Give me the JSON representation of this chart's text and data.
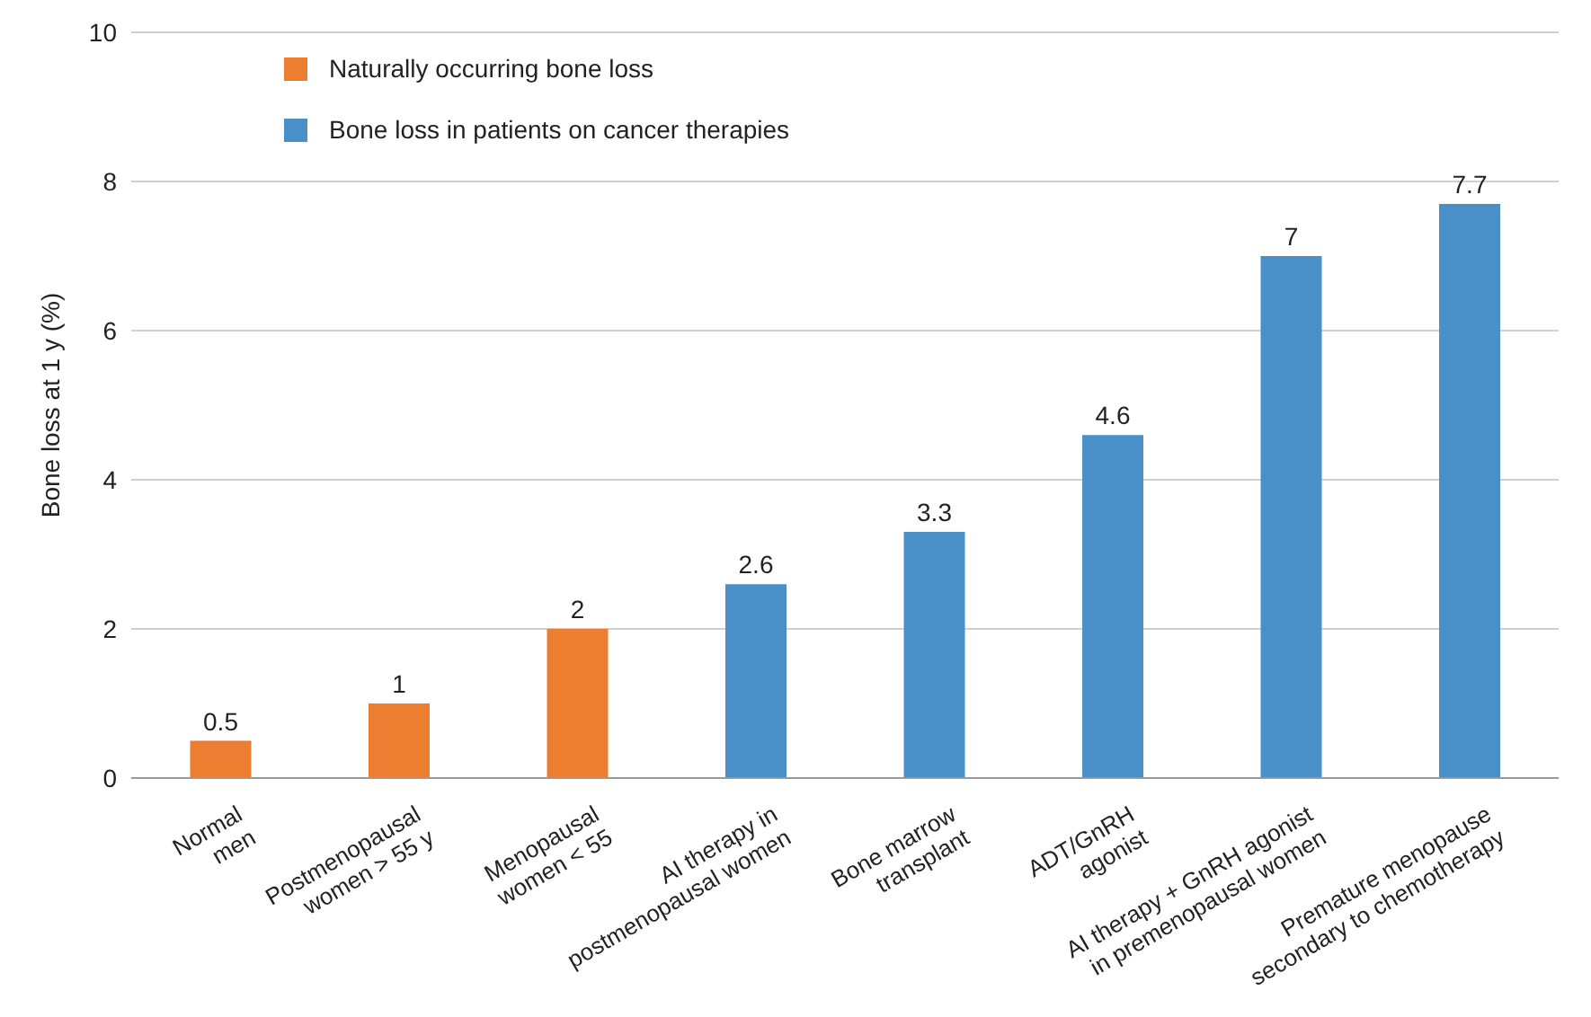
{
  "chart_data": {
    "type": "bar",
    "ylabel": "Bone loss at 1 y (%)",
    "categories": [
      "Normal men",
      "Postmenopausal women > 55 y",
      "Menopausal women < 55",
      "AI therapy in postmenopausal women",
      "Bone marrow transplant",
      "ADT/GnRH agonist",
      "AI therapy + GnRH agonist in premenopausal women",
      "Premature menopause secondary to chemotherapy"
    ],
    "series": [
      {
        "name": "Naturally occurring bone loss",
        "color": "#ed7d31",
        "values": [
          0.5,
          1,
          2,
          null,
          null,
          null,
          null,
          null
        ]
      },
      {
        "name": "Bone loss in patients on cancer therapies",
        "color": "#4a90c8",
        "values": [
          null,
          null,
          null,
          2.6,
          3.3,
          4.6,
          7,
          7.7
        ]
      }
    ],
    "stacked": true,
    "ylim": [
      0,
      10
    ],
    "yticks": [
      0,
      2,
      4,
      6,
      8,
      10
    ],
    "grid": "y",
    "legend": "top left",
    "data_labels": true
  }
}
